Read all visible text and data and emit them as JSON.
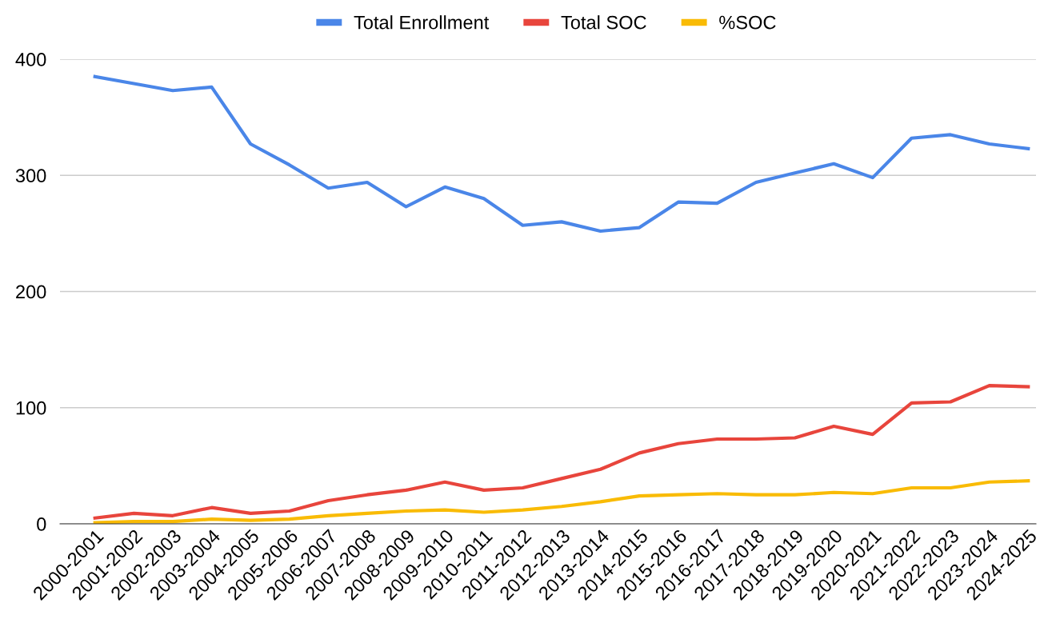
{
  "chart_data": {
    "type": "line",
    "categories": [
      "2000-2001",
      "2001-2002",
      "2002-2003",
      "2003-2004",
      "2004-2005",
      "2005-2006",
      "2006-2007",
      "2007-2008",
      "2008-2009",
      "2009-2010",
      "2010-2011",
      "2011-2012",
      "2012-2013",
      "2013-2014",
      "2014-2015",
      "2015-2016",
      "2016-2017",
      "2017-2018",
      "2018-2019",
      "2019-2020",
      "2020-2021",
      "2021-2022",
      "2022-2023",
      "2023-2024",
      "2024-2025"
    ],
    "series": [
      {
        "name": "Total Enrollment",
        "color": "#4a86e8",
        "values": [
          385,
          379,
          373,
          376,
          327,
          309,
          289,
          294,
          273,
          290,
          280,
          257,
          260,
          252,
          255,
          277,
          276,
          294,
          302,
          310,
          298,
          332,
          335,
          327,
          323
        ]
      },
      {
        "name": "Total SOC",
        "color": "#e8453c",
        "values": [
          5,
          9,
          7,
          14,
          9,
          11,
          20,
          25,
          29,
          36,
          29,
          31,
          39,
          47,
          61,
          69,
          73,
          73,
          74,
          84,
          77,
          104,
          105,
          119,
          118
        ]
      },
      {
        "name": "%SOC",
        "color": "#f9bb05",
        "values": [
          1,
          2,
          2,
          4,
          3,
          4,
          7,
          9,
          11,
          12,
          10,
          12,
          15,
          19,
          24,
          25,
          26,
          25,
          25,
          27,
          26,
          31,
          31,
          36,
          37
        ]
      }
    ],
    "ylim": [
      0,
      400
    ],
    "yticks": [
      0,
      100,
      200,
      300,
      400
    ],
    "grid": "y",
    "legend": "top",
    "marker": "none",
    "line_style": "solid"
  }
}
